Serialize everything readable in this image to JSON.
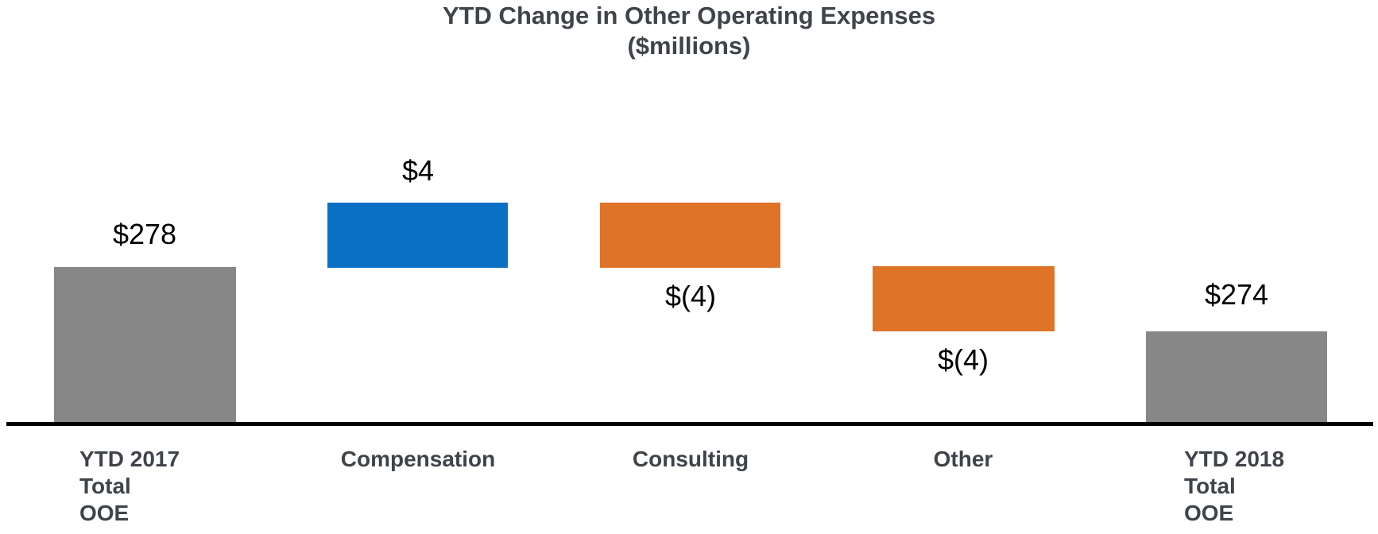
{
  "page": {
    "background": "#ffffff"
  },
  "colors": {
    "total_bar": "#878787",
    "increase_bar": "#0a70c4",
    "decrease_bar": "#df7428",
    "axis_line": "#000000",
    "heading_text": "#3f444a",
    "value_label_text": "#000000"
  },
  "chart_data": {
    "type": "bar",
    "subtype": "waterfall",
    "title": "YTD Change in Other Operating Expenses",
    "subtitle": "($millions)",
    "categories": [
      "YTD 2017 Total OOE",
      "Compensation",
      "Consulting",
      "Other",
      "YTD 2018 Total OOE"
    ],
    "category_display_lines": [
      [
        "YTD 2017",
        "Total",
        "OOE"
      ],
      [
        "Compensation"
      ],
      [
        "Consulting"
      ],
      [
        "Other"
      ],
      [
        "YTD 2018",
        "Total",
        "OOE"
      ]
    ],
    "values": [
      278,
      4,
      -4,
      -4,
      274
    ],
    "data_labels": [
      "$278",
      "$4",
      "$(4)",
      "$(4)",
      "$274"
    ],
    "bar_roles": [
      "total",
      "increase",
      "decrease",
      "decrease",
      "total"
    ],
    "label_positions": [
      "above",
      "above",
      "below",
      "below",
      "above"
    ],
    "start_value": 278,
    "end_value": 274,
    "legend": "none",
    "gridlines": false,
    "y_axis": "hidden",
    "x_baseline": "visible"
  }
}
